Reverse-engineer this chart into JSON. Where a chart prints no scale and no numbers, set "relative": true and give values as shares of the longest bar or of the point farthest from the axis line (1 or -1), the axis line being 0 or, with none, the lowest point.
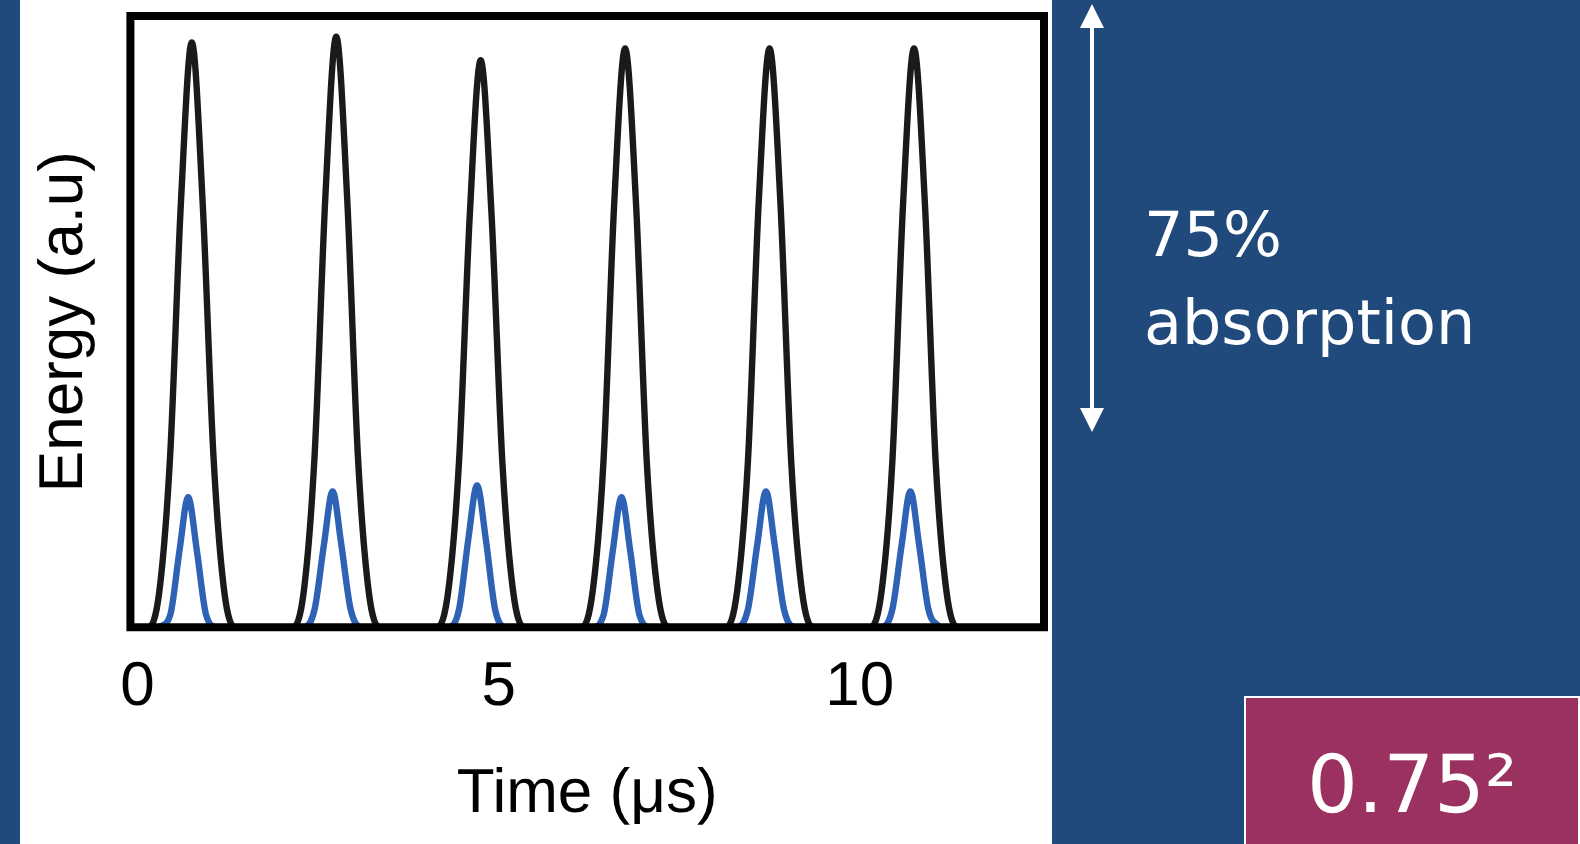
{
  "chart_data": {
    "type": "line",
    "relative": true,
    "xlabel": "Time (μs)",
    "ylabel": "Energy (a.u)",
    "xlim": [
      -0.1,
      12.55
    ],
    "xticks": [
      0,
      5,
      10
    ],
    "grid": false,
    "legend": false,
    "marker": "none",
    "line_style": "solid",
    "series": [
      {
        "color": "#1a1a1a",
        "x": [
          -0.1,
          0.15,
          0.3,
          0.45,
          0.6,
          0.75,
          0.9,
          1.05,
          1.2,
          1.35,
          2.15,
          2.3,
          2.45,
          2.6,
          2.75,
          2.9,
          3.05,
          3.2,
          3.35,
          4.15,
          4.3,
          4.45,
          4.6,
          4.75,
          4.9,
          5.05,
          5.2,
          5.35,
          6.15,
          6.3,
          6.45,
          6.6,
          6.75,
          6.9,
          7.05,
          7.2,
          7.35,
          8.15,
          8.3,
          8.45,
          8.6,
          8.75,
          8.9,
          9.05,
          9.2,
          9.35,
          10.15,
          10.3,
          10.45,
          10.6,
          10.75,
          10.9,
          11.05,
          11.2,
          11.35,
          12.55
        ],
        "values": [
          0,
          0,
          0.06,
          0.29,
          0.72,
          0.99,
          0.72,
          0.29,
          0.06,
          0,
          0,
          0.06,
          0.29,
          0.73,
          1,
          0.73,
          0.29,
          0.06,
          0,
          0,
          0.06,
          0.28,
          0.7,
          0.96,
          0.7,
          0.28,
          0.06,
          0,
          0,
          0.06,
          0.28,
          0.72,
          0.98,
          0.72,
          0.28,
          0.06,
          0,
          0,
          0.06,
          0.28,
          0.72,
          0.98,
          0.72,
          0.28,
          0.06,
          0,
          0,
          0.06,
          0.28,
          0.72,
          0.98,
          0.72,
          0.28,
          0.06,
          0,
          0
        ]
      },
      {
        "color": "#2e62b5",
        "x": [
          0.3,
          0.45,
          0.58,
          0.7,
          0.82,
          0.95,
          1.1,
          2.3,
          2.45,
          2.58,
          2.7,
          2.82,
          2.95,
          3.1,
          4.3,
          4.45,
          4.58,
          4.7,
          4.82,
          4.95,
          5.1,
          6.3,
          6.45,
          6.58,
          6.7,
          6.82,
          6.95,
          7.1,
          8.3,
          8.45,
          8.58,
          8.7,
          8.82,
          8.95,
          9.1,
          10.3,
          10.45,
          10.58,
          10.7,
          10.82,
          10.95,
          11.1
        ],
        "values": [
          0,
          0.02,
          0.13,
          0.22,
          0.13,
          0.02,
          0,
          0,
          0.03,
          0.14,
          0.23,
          0.14,
          0.03,
          0,
          0,
          0.03,
          0.15,
          0.24,
          0.15,
          0.03,
          0,
          0,
          0.02,
          0.13,
          0.22,
          0.13,
          0.02,
          0,
          0,
          0.03,
          0.14,
          0.23,
          0.14,
          0.03,
          0,
          0,
          0.03,
          0.14,
          0.23,
          0.14,
          0.03,
          0
        ]
      }
    ],
    "annotations": [
      "75% absorption",
      "0.75²"
    ]
  }
}
